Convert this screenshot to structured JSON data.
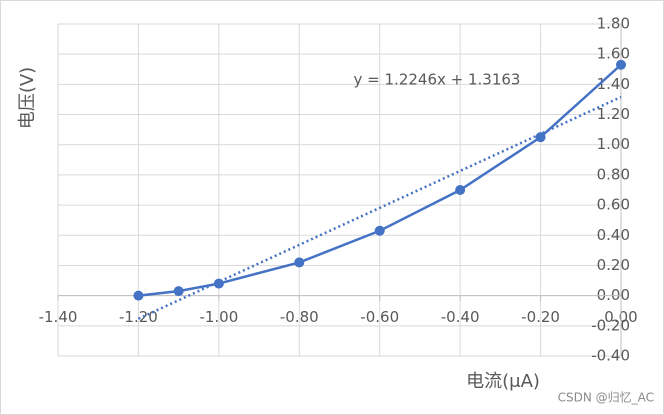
{
  "chart_data": {
    "type": "scatter",
    "x_label": "电流(μA)",
    "y_label": "电压(V)",
    "x": [
      -1.2,
      -1.1,
      -1.0,
      -0.8,
      -0.6,
      -0.4,
      -0.2,
      0.0
    ],
    "values": [
      0.0,
      0.03,
      0.08,
      0.22,
      0.43,
      0.7,
      1.05,
      1.53
    ],
    "color": "#4472c4",
    "trendline": {
      "slope": 1.2246,
      "intercept": 1.3163,
      "label": "y = 1.2246x + 1.3163",
      "style": "dotted"
    },
    "xlim": [
      -1.4,
      0
    ],
    "ylim": [
      -0.4,
      1.8
    ],
    "xticks": [
      {
        "value": -1.4,
        "label": "-1.40"
      },
      {
        "value": -1.2,
        "label": "-1.20"
      },
      {
        "value": -1.0,
        "label": "-1.00"
      },
      {
        "value": -0.8,
        "label": "-0.80"
      },
      {
        "value": -0.6,
        "label": "-0.60"
      },
      {
        "value": -0.4,
        "label": "-0.40"
      },
      {
        "value": -0.2,
        "label": "-0.20"
      },
      {
        "value": 0,
        "label": "0.00"
      }
    ],
    "yticks": [
      {
        "value": -0.4,
        "label": "-0.40"
      },
      {
        "value": -0.2,
        "label": "-0.20"
      },
      {
        "value": 0,
        "label": "0.00"
      },
      {
        "value": 0.2,
        "label": "0.20"
      },
      {
        "value": 0.4,
        "label": "0.40"
      },
      {
        "value": 0.6,
        "label": "0.60"
      },
      {
        "value": 0.8,
        "label": "0.80"
      },
      {
        "value": 1.0,
        "label": "1.00"
      },
      {
        "value": 1.2,
        "label": "1.20"
      },
      {
        "value": 1.4,
        "label": "1.40"
      },
      {
        "value": 1.6,
        "label": "1.60"
      },
      {
        "value": 1.8,
        "label": "1.80"
      }
    ],
    "grid": true,
    "watermark": "CSDN @归忆_AC"
  }
}
